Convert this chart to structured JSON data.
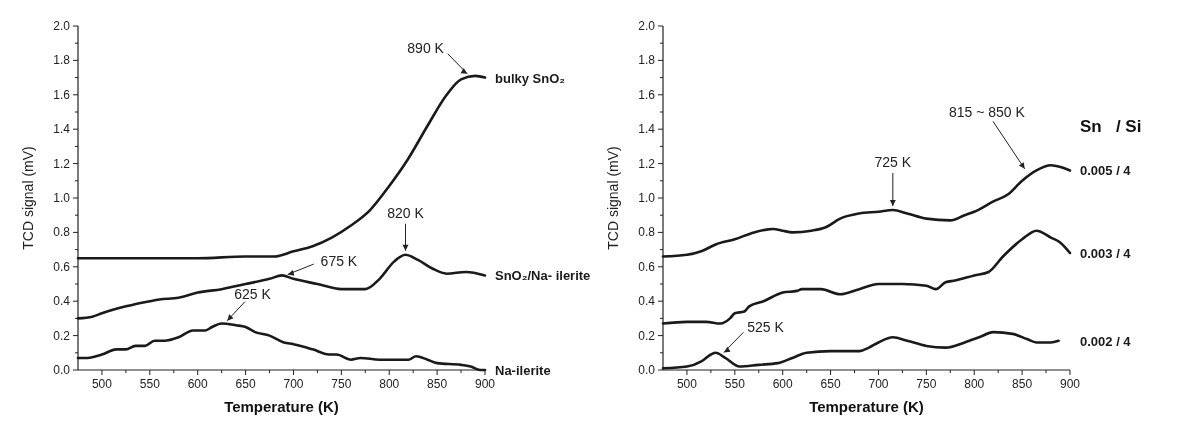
{
  "chart_data": [
    {
      "type": "line",
      "xlabel": "Temperature (K)",
      "ylabel": "TCD signal (mV)",
      "xlim": [
        475,
        900
      ],
      "ylim": [
        0,
        2.0
      ],
      "xticks": [
        {
          "value": 500,
          "label": "500"
        },
        {
          "value": 525,
          "label": null
        },
        {
          "value": 550,
          "label": "550"
        },
        {
          "value": 575,
          "label": null
        },
        {
          "value": 600,
          "label": "600"
        },
        {
          "value": 625,
          "label": null
        },
        {
          "value": 650,
          "label": "650"
        },
        {
          "value": 675,
          "label": null
        },
        {
          "value": 700,
          "label": "700"
        },
        {
          "value": 725,
          "label": null
        },
        {
          "value": 750,
          "label": "750"
        },
        {
          "value": 775,
          "label": null
        },
        {
          "value": 800,
          "label": "800"
        },
        {
          "value": 825,
          "label": null
        },
        {
          "value": 850,
          "label": "850"
        },
        {
          "value": 875,
          "label": null
        },
        {
          "value": 900,
          "label": "900"
        }
      ],
      "yticks": [
        {
          "value": 0,
          "label": "0.0"
        },
        {
          "value": 0.1,
          "label": null
        },
        {
          "value": 0.2,
          "label": "0.2"
        },
        {
          "value": 0.3,
          "label": null
        },
        {
          "value": 0.4,
          "label": "0.4"
        },
        {
          "value": 0.5,
          "label": null
        },
        {
          "value": 0.6,
          "label": "0.6"
        },
        {
          "value": 0.7,
          "label": null
        },
        {
          "value": 0.8,
          "label": "0.8"
        },
        {
          "value": 0.9,
          "label": null
        },
        {
          "value": 1.0,
          "label": "1.0"
        },
        {
          "value": 1.1,
          "label": null
        },
        {
          "value": 1.2,
          "label": "1.2"
        },
        {
          "value": 1.3,
          "label": null
        },
        {
          "value": 1.4,
          "label": "1.4"
        },
        {
          "value": 1.5,
          "label": null
        },
        {
          "value": 1.6,
          "label": "1.6"
        },
        {
          "value": 1.7,
          "label": null
        },
        {
          "value": 1.8,
          "label": "1.8"
        },
        {
          "value": 1.9,
          "label": null
        },
        {
          "value": 2.0,
          "label": "2.0"
        }
      ],
      "marker": "none",
      "line_style": "solid",
      "series": [
        {
          "name": "bulky SnO₂",
          "color": "#1a1a1a",
          "x": [
            475,
            500,
            550,
            600,
            650,
            680,
            700,
            720,
            740,
            760,
            780,
            800,
            820,
            840,
            860,
            875,
            890,
            900
          ],
          "values": [
            0.65,
            0.65,
            0.65,
            0.65,
            0.66,
            0.66,
            0.69,
            0.72,
            0.77,
            0.84,
            0.93,
            1.07,
            1.23,
            1.42,
            1.6,
            1.69,
            1.71,
            1.7
          ]
        },
        {
          "name": "SnO₂/Na- ilerite",
          "color": "#1a1a1a",
          "x": [
            475,
            490,
            500,
            525,
            550,
            560,
            580,
            600,
            625,
            650,
            675,
            688,
            700,
            725,
            750,
            775,
            790,
            805,
            817,
            830,
            845,
            860,
            880,
            900
          ],
          "values": [
            0.3,
            0.31,
            0.33,
            0.37,
            0.4,
            0.41,
            0.42,
            0.45,
            0.47,
            0.5,
            0.53,
            0.55,
            0.53,
            0.5,
            0.47,
            0.47,
            0.53,
            0.63,
            0.67,
            0.64,
            0.59,
            0.56,
            0.57,
            0.55
          ]
        },
        {
          "name": "Na-ilerite",
          "color": "#1a1a1a",
          "x": [
            475,
            485,
            500,
            515,
            525,
            535,
            545,
            555,
            565,
            580,
            595,
            608,
            615,
            625,
            640,
            650,
            660,
            675,
            690,
            700,
            720,
            737,
            745,
            760,
            770,
            790,
            810,
            820,
            828,
            840,
            850,
            875,
            885,
            895,
            900
          ],
          "values": [
            0.07,
            0.07,
            0.09,
            0.12,
            0.12,
            0.14,
            0.14,
            0.17,
            0.17,
            0.19,
            0.23,
            0.23,
            0.25,
            0.27,
            0.26,
            0.25,
            0.22,
            0.2,
            0.16,
            0.15,
            0.12,
            0.09,
            0.09,
            0.06,
            0.07,
            0.06,
            0.06,
            0.06,
            0.08,
            0.06,
            0.04,
            0.03,
            0.02,
            0.0,
            0.0
          ]
        }
      ],
      "annotations": [
        {
          "text": "890 K",
          "x": 885,
          "y": 1.71
        },
        {
          "text": "820 K",
          "x": 817,
          "y": 0.67
        },
        {
          "text": "675 K",
          "x": 690,
          "y": 0.55
        },
        {
          "text": "625 K",
          "x": 628,
          "y": 0.27
        }
      ]
    },
    {
      "type": "line",
      "xlabel": "Temperature (K)",
      "ylabel": "TCD signal (mV)",
      "legend_title": "Sn   / Si",
      "xlim": [
        475,
        900
      ],
      "ylim": [
        0,
        2.0
      ],
      "xticks": [
        {
          "value": 500,
          "label": "500"
        },
        {
          "value": 525,
          "label": null
        },
        {
          "value": 550,
          "label": "550"
        },
        {
          "value": 575,
          "label": null
        },
        {
          "value": 600,
          "label": "600"
        },
        {
          "value": 625,
          "label": null
        },
        {
          "value": 650,
          "label": "650"
        },
        {
          "value": 675,
          "label": null
        },
        {
          "value": 700,
          "label": "700"
        },
        {
          "value": 725,
          "label": null
        },
        {
          "value": 750,
          "label": "750"
        },
        {
          "value": 775,
          "label": null
        },
        {
          "value": 800,
          "label": "800"
        },
        {
          "value": 825,
          "label": null
        },
        {
          "value": 850,
          "label": "850"
        },
        {
          "value": 875,
          "label": null
        },
        {
          "value": 900,
          "label": "900"
        }
      ],
      "yticks": [
        {
          "value": 0,
          "label": "0.0"
        },
        {
          "value": 0.1,
          "label": null
        },
        {
          "value": 0.2,
          "label": "0.2"
        },
        {
          "value": 0.3,
          "label": null
        },
        {
          "value": 0.4,
          "label": "0.4"
        },
        {
          "value": 0.5,
          "label": null
        },
        {
          "value": 0.6,
          "label": "0.6"
        },
        {
          "value": 0.7,
          "label": null
        },
        {
          "value": 0.8,
          "label": "0.8"
        },
        {
          "value": 0.9,
          "label": null
        },
        {
          "value": 1.0,
          "label": "1.0"
        },
        {
          "value": 1.1,
          "label": null
        },
        {
          "value": 1.2,
          "label": "1.2"
        },
        {
          "value": 1.3,
          "label": null
        },
        {
          "value": 1.4,
          "label": "1.4"
        },
        {
          "value": 1.5,
          "label": null
        },
        {
          "value": 1.6,
          "label": "1.6"
        },
        {
          "value": 1.7,
          "label": null
        },
        {
          "value": 1.8,
          "label": "1.8"
        },
        {
          "value": 1.9,
          "label": null
        },
        {
          "value": 2.0,
          "label": "2.0"
        }
      ],
      "marker": "none",
      "line_style": "solid",
      "series": [
        {
          "name": "0.005 / 4",
          "color": "#1a1a1a",
          "x": [
            475,
            500,
            515,
            530,
            550,
            570,
            590,
            600,
            610,
            630,
            645,
            660,
            680,
            700,
            715,
            730,
            750,
            775,
            790,
            800,
            820,
            835,
            850,
            865,
            880,
            890,
            900
          ],
          "values": [
            0.66,
            0.67,
            0.69,
            0.73,
            0.76,
            0.8,
            0.82,
            0.81,
            0.8,
            0.81,
            0.83,
            0.88,
            0.91,
            0.92,
            0.93,
            0.91,
            0.88,
            0.87,
            0.9,
            0.92,
            0.98,
            1.02,
            1.1,
            1.16,
            1.19,
            1.18,
            1.16
          ]
        },
        {
          "name": "0.003 / 4",
          "color": "#1a1a1a",
          "x": [
            475,
            500,
            520,
            535,
            545,
            550,
            560,
            565,
            580,
            600,
            615,
            620,
            640,
            660,
            680,
            700,
            725,
            750,
            760,
            770,
            780,
            800,
            815,
            830,
            850,
            865,
            880,
            890,
            900
          ],
          "values": [
            0.27,
            0.28,
            0.28,
            0.27,
            0.3,
            0.33,
            0.34,
            0.37,
            0.4,
            0.45,
            0.46,
            0.47,
            0.47,
            0.44,
            0.47,
            0.5,
            0.5,
            0.49,
            0.47,
            0.51,
            0.52,
            0.55,
            0.57,
            0.66,
            0.76,
            0.81,
            0.77,
            0.74,
            0.68
          ]
        },
        {
          "name": "0.002 / 4",
          "color": "#1a1a1a",
          "x": [
            475,
            500,
            515,
            525,
            530,
            540,
            555,
            575,
            595,
            610,
            625,
            650,
            665,
            680,
            690,
            700,
            715,
            730,
            750,
            770,
            790,
            805,
            820,
            840,
            855,
            865,
            880,
            888
          ],
          "values": [
            0.01,
            0.02,
            0.05,
            0.09,
            0.1,
            0.07,
            0.02,
            0.03,
            0.04,
            0.07,
            0.1,
            0.11,
            0.11,
            0.11,
            0.13,
            0.16,
            0.19,
            0.17,
            0.14,
            0.13,
            0.16,
            0.19,
            0.22,
            0.21,
            0.18,
            0.16,
            0.16,
            0.17
          ]
        }
      ],
      "annotations": [
        {
          "text": "725 K",
          "x": 715,
          "y": 0.93
        },
        {
          "text": "815 ~ 850 K",
          "x": 855,
          "y": 1.15
        },
        {
          "text": "525 K",
          "x": 535,
          "y": 0.09
        }
      ]
    }
  ]
}
